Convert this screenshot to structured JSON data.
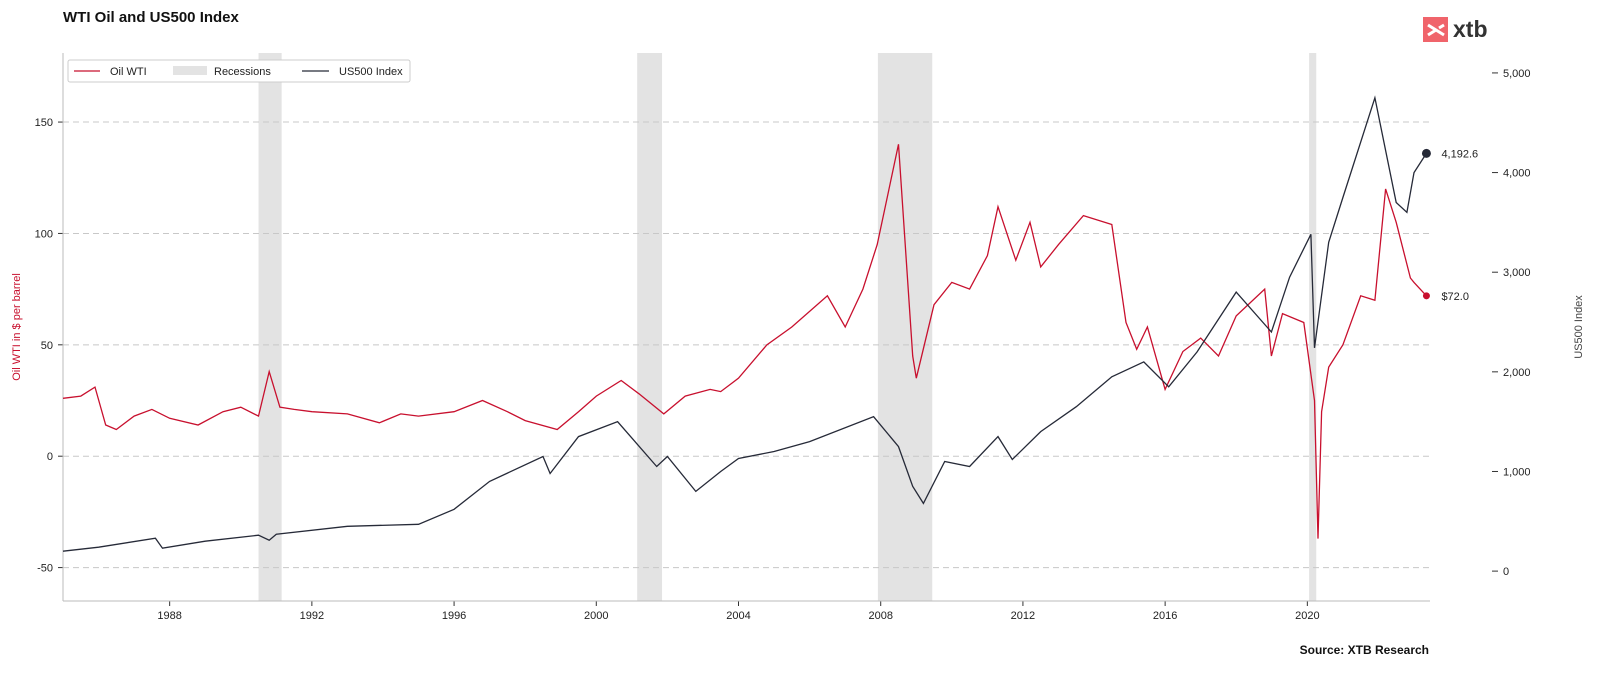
{
  "brand": {
    "logo": "xtb"
  },
  "footer": {
    "source": "Source: XTB Research"
  },
  "chart_data": {
    "type": "line",
    "title": "WTI Oil and US500 Index",
    "ylabel_left": "Oil WTI in $ per barrel",
    "ylabel_right": "US500 Index",
    "xlim": [
      1985.0,
      2023.45
    ],
    "ylim_left": [
      -65,
      181
    ],
    "ylim_right": [
      -300,
      5200
    ],
    "xticks": [
      1988,
      1992,
      1996,
      2000,
      2004,
      2008,
      2012,
      2016,
      2020
    ],
    "yticks_left": [
      -50,
      0,
      50,
      100,
      150
    ],
    "yticks_right": [
      {
        "v": 0,
        "label": "0"
      },
      {
        "v": 1000,
        "label": "1,000"
      },
      {
        "v": 2000,
        "label": "2,000"
      },
      {
        "v": 3000,
        "label": "3,000"
      },
      {
        "v": 4000,
        "label": "4,000"
      },
      {
        "v": 5000,
        "label": "5,000"
      }
    ],
    "grid": "horizontal dashed",
    "legend_placement": "top-left",
    "legend": [
      "Oil WTI",
      "Recessions",
      "US500 Index"
    ],
    "colors": {
      "oil": "#c8102e",
      "us500": "#262a38",
      "recession": "#e3e3e3"
    },
    "recessions": [
      [
        1990.5,
        1991.15
      ],
      [
        2001.15,
        2001.85
      ],
      [
        2007.92,
        2009.45
      ],
      [
        2020.05,
        2020.25
      ]
    ],
    "series": [
      {
        "name": "Oil WTI",
        "axis": "left",
        "end_label": "$72.0",
        "points": [
          [
            1985.0,
            26
          ],
          [
            1985.5,
            27
          ],
          [
            1985.9,
            31
          ],
          [
            1986.2,
            14
          ],
          [
            1986.5,
            12
          ],
          [
            1987.0,
            18
          ],
          [
            1987.5,
            21
          ],
          [
            1988.0,
            17
          ],
          [
            1988.8,
            14
          ],
          [
            1989.5,
            20
          ],
          [
            1990.0,
            22
          ],
          [
            1990.5,
            18
          ],
          [
            1990.8,
            38
          ],
          [
            1991.1,
            22
          ],
          [
            1991.5,
            21
          ],
          [
            1992.0,
            20
          ],
          [
            1993.0,
            19
          ],
          [
            1993.9,
            15
          ],
          [
            1994.5,
            19
          ],
          [
            1995.0,
            18
          ],
          [
            1996.0,
            20
          ],
          [
            1996.8,
            25
          ],
          [
            1997.5,
            20
          ],
          [
            1998.0,
            16
          ],
          [
            1998.9,
            12
          ],
          [
            1999.5,
            20
          ],
          [
            2000.0,
            27
          ],
          [
            2000.7,
            34
          ],
          [
            2001.2,
            28
          ],
          [
            2001.9,
            19
          ],
          [
            2002.5,
            27
          ],
          [
            2003.2,
            30
          ],
          [
            2003.5,
            29
          ],
          [
            2004.0,
            35
          ],
          [
            2004.8,
            50
          ],
          [
            2005.5,
            58
          ],
          [
            2006.5,
            72
          ],
          [
            2007.0,
            58
          ],
          [
            2007.5,
            75
          ],
          [
            2007.9,
            95
          ],
          [
            2008.5,
            140
          ],
          [
            2008.9,
            45
          ],
          [
            2009.0,
            35
          ],
          [
            2009.5,
            68
          ],
          [
            2010.0,
            78
          ],
          [
            2010.5,
            75
          ],
          [
            2011.0,
            90
          ],
          [
            2011.3,
            112
          ],
          [
            2011.8,
            88
          ],
          [
            2012.2,
            105
          ],
          [
            2012.5,
            85
          ],
          [
            2013.0,
            95
          ],
          [
            2013.7,
            108
          ],
          [
            2014.5,
            104
          ],
          [
            2014.9,
            60
          ],
          [
            2015.2,
            48
          ],
          [
            2015.5,
            58
          ],
          [
            2016.0,
            30
          ],
          [
            2016.5,
            47
          ],
          [
            2017.0,
            53
          ],
          [
            2017.5,
            45
          ],
          [
            2018.0,
            63
          ],
          [
            2018.8,
            75
          ],
          [
            2018.99,
            45
          ],
          [
            2019.3,
            64
          ],
          [
            2019.9,
            60
          ],
          [
            2020.2,
            25
          ],
          [
            2020.3,
            -37
          ],
          [
            2020.4,
            20
          ],
          [
            2020.6,
            40
          ],
          [
            2021.0,
            50
          ],
          [
            2021.5,
            72
          ],
          [
            2021.9,
            70
          ],
          [
            2022.2,
            120
          ],
          [
            2022.5,
            105
          ],
          [
            2022.9,
            80
          ],
          [
            2023.0,
            78
          ],
          [
            2023.35,
            72.0
          ]
        ]
      },
      {
        "name": "US500 Index",
        "axis": "right",
        "end_label": "4,192.6",
        "points": [
          [
            1985.0,
            200
          ],
          [
            1986.0,
            240
          ],
          [
            1987.6,
            330
          ],
          [
            1987.8,
            230
          ],
          [
            1989.0,
            300
          ],
          [
            1990.5,
            360
          ],
          [
            1990.8,
            310
          ],
          [
            1991.0,
            370
          ],
          [
            1993.0,
            450
          ],
          [
            1995.0,
            470
          ],
          [
            1996.0,
            620
          ],
          [
            1997.0,
            900
          ],
          [
            1998.5,
            1150
          ],
          [
            1998.7,
            980
          ],
          [
            1999.5,
            1350
          ],
          [
            2000.6,
            1500
          ],
          [
            2001.7,
            1050
          ],
          [
            2002.0,
            1150
          ],
          [
            2002.8,
            800
          ],
          [
            2003.5,
            1000
          ],
          [
            2004.0,
            1130
          ],
          [
            2005.0,
            1200
          ],
          [
            2006.0,
            1300
          ],
          [
            2007.8,
            1550
          ],
          [
            2008.5,
            1250
          ],
          [
            2008.9,
            850
          ],
          [
            2009.2,
            680
          ],
          [
            2009.8,
            1100
          ],
          [
            2010.5,
            1050
          ],
          [
            2011.3,
            1350
          ],
          [
            2011.7,
            1120
          ],
          [
            2012.5,
            1400
          ],
          [
            2013.5,
            1650
          ],
          [
            2014.5,
            1950
          ],
          [
            2015.4,
            2100
          ],
          [
            2016.1,
            1850
          ],
          [
            2016.9,
            2200
          ],
          [
            2018.0,
            2800
          ],
          [
            2018.99,
            2400
          ],
          [
            2019.5,
            2950
          ],
          [
            2020.1,
            3380
          ],
          [
            2020.2,
            2240
          ],
          [
            2020.6,
            3300
          ],
          [
            2021.0,
            3750
          ],
          [
            2021.9,
            4750
          ],
          [
            2022.5,
            3700
          ],
          [
            2022.8,
            3600
          ],
          [
            2023.0,
            4000
          ],
          [
            2023.35,
            4192.6
          ]
        ]
      }
    ]
  }
}
